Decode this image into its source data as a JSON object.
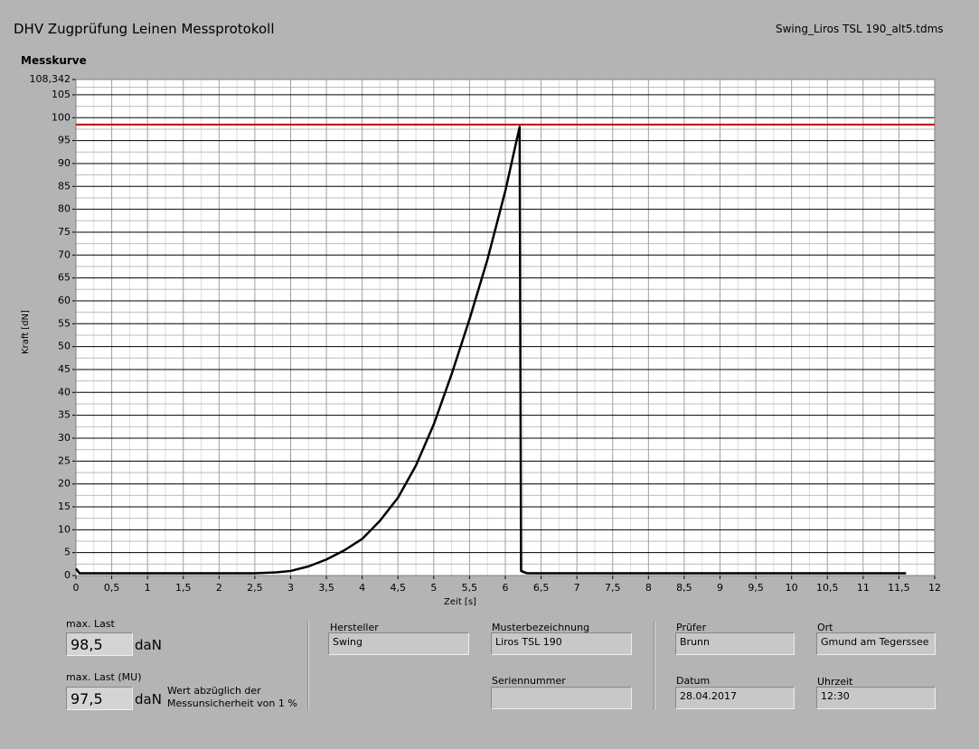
{
  "header": {
    "title": "DHV Zugprüfung Leinen Messprotokoll",
    "file": "Swing_Liros TSL 190_alt5.tdms"
  },
  "chart_data": {
    "type": "line",
    "title": "Messkurve",
    "x_label": "Zeit [s]",
    "y_label": "Kraft [dN]",
    "x": [
      0,
      0.05,
      0.5,
      1,
      1.5,
      2,
      2.5,
      2.8,
      3,
      3.25,
      3.5,
      3.75,
      4,
      4.25,
      4.5,
      4.75,
      5,
      5.25,
      5.5,
      5.75,
      6,
      6.2,
      6.22,
      6.3,
      7,
      8,
      9,
      10,
      11,
      11.6
    ],
    "series": [
      {
        "color": "#000000",
        "values": [
          1.5,
          0.5,
          0.5,
          0.5,
          0.5,
          0.5,
          0.5,
          0.7,
          1,
          2,
          3.5,
          5.5,
          8,
          12,
          17,
          24,
          33,
          44,
          56,
          69,
          84,
          98,
          1,
          0.5,
          0.5,
          0.5,
          0.5,
          0.5,
          0.5,
          0.5
        ]
      }
    ],
    "hline": {
      "value": 98.5,
      "color": "#c00000"
    },
    "xlim": [
      0,
      12
    ],
    "ylim": [
      0,
      108.342
    ],
    "xticks": [
      0,
      {
        "value": 0.5,
        "label": "0,5"
      },
      1,
      {
        "value": 1.5,
        "label": "1,5"
      },
      2,
      {
        "value": 2.5,
        "label": "2,5"
      },
      3,
      {
        "value": 3.5,
        "label": "3,5"
      },
      4,
      {
        "value": 4.5,
        "label": "4,5"
      },
      5,
      {
        "value": 5.5,
        "label": "5,5"
      },
      6,
      {
        "value": 6.5,
        "label": "6,5"
      },
      7,
      {
        "value": 7.5,
        "label": "7,5"
      },
      8,
      {
        "value": 8.5,
        "label": "8,5"
      },
      9,
      {
        "value": 9.5,
        "label": "9,5"
      },
      10,
      {
        "value": 10.5,
        "label": "10,5"
      },
      11,
      {
        "value": 11.5,
        "label": "11,5"
      },
      12
    ],
    "yticks": [
      0,
      5,
      10,
      15,
      20,
      25,
      30,
      35,
      40,
      45,
      50,
      55,
      60,
      65,
      70,
      75,
      80,
      85,
      90,
      95,
      100,
      105,
      {
        "value": 108.342,
        "label": "108,342"
      }
    ],
    "grid": true
  },
  "results": {
    "max_label": "max. Last",
    "max_value": "98,5",
    "max_unit": "daN",
    "mu_label": "max. Last (MU)",
    "mu_value": "97,5",
    "mu_unit": "daN",
    "note": [
      "Wert abzüglich der",
      "Messunsicherheit von 1 %"
    ]
  },
  "fields": {
    "hersteller": {
      "label": "Hersteller",
      "value": "Swing"
    },
    "muster": {
      "label": "Musterbezeichnung",
      "value": "Liros TSL 190"
    },
    "serie": {
      "label": "Seriennummer"
    },
    "pruefer": {
      "label": "Prüfer",
      "value": "Brunn"
    },
    "ort": {
      "label": "Ort",
      "value": "Gmund am Tegerssee"
    },
    "datum": {
      "label": "Datum",
      "value": "28.04.2017"
    },
    "uhrzeit": {
      "label": "Uhrzeit",
      "value": "12:30"
    }
  }
}
